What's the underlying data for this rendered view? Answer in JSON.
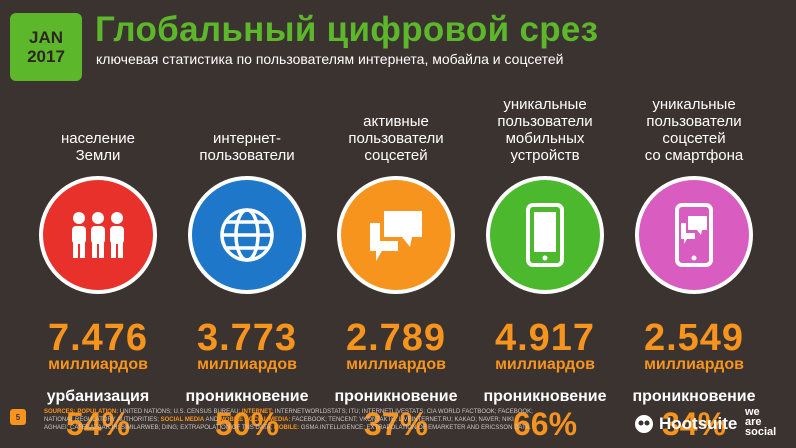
{
  "badge": {
    "month": "JAN",
    "year": "2017"
  },
  "title": "Глобальный цифровой срез",
  "subtitle": "ключевая статистика по пользователям интернета, мобайла и соцсетей",
  "columns": [
    {
      "label": "население\nЗемли",
      "icon": "people-icon",
      "color": "#e8312b",
      "value": "7.476",
      "unit": "миллиардов",
      "metric": "урбанизация",
      "percent": "54%"
    },
    {
      "label": "интернет-\nпользователи",
      "icon": "globe-icon",
      "color": "#1f77c9",
      "value": "3.773",
      "unit": "миллиардов",
      "metric": "проникновение",
      "percent": "50%"
    },
    {
      "label": "активные\nпользователи\nсоцсетей",
      "icon": "chat-bubbles-icon",
      "color": "#f7941d",
      "value": "2.789",
      "unit": "миллиардов",
      "metric": "проникновение",
      "percent": "37%"
    },
    {
      "label": "уникальные\nпользователи\nмобильных\nустройств",
      "icon": "smartphone-icon",
      "color": "#4cb82e",
      "value": "4.917",
      "unit": "миллиардов",
      "metric": "проникновение",
      "percent": "66%"
    },
    {
      "label": "уникальные\nпользователи\nсоцсетей\nсо смартфона",
      "icon": "smartphone-chat-icon",
      "color": "#d95cc0",
      "value": "2.549",
      "unit": "миллиардов",
      "metric": "проникновение",
      "percent": "34%"
    }
  ],
  "footer": {
    "page": "5",
    "sources_label": "SOURCES:",
    "sources_parts": [
      {
        "hl": "POPULATION:",
        "text": " UNITED NATIONS; U.S. CENSUS BUREAU; "
      },
      {
        "hl": "INTERNET:",
        "text": " INTERNETWORLDSTATS; ITU; INTERNETLIVESTATS; CIA WORLD FACTBOOK; FACEBOOK; NATIONAL REGULATORY AUTHORITIES; "
      },
      {
        "hl": "SOCIAL MEDIA",
        "text": " AND "
      },
      {
        "hl": "MOBILE SOCIAL MEDIA:",
        "text": " FACEBOOK; TENCENT; VKONTAKTE; LIVEINTERNET.RU; KAKAO; NAVER; NIKI AGHAEI; CAFEBAZAAR.IR; SIMILARWEB; DING; EXTRAPOLATION OF TNS DATA; "
      },
      {
        "hl": "MOBILE:",
        "text": " GSMA INTELLIGENCE; EXTRAPOLATION OF EMARKETER AND ERICSSON DATA."
      }
    ],
    "hootsuite": "Hootsuite",
    "wearesocial": [
      "we",
      "are",
      "social"
    ]
  }
}
